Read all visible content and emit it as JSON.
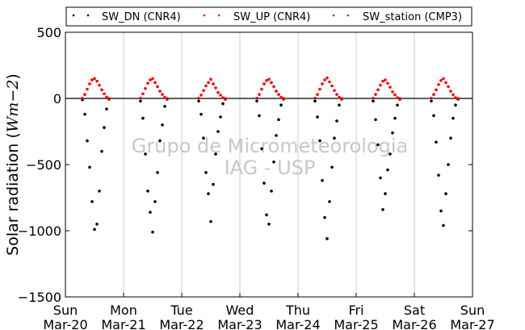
{
  "chart_data": {
    "type": "scatter",
    "title": "",
    "xlabel": "",
    "ylabel": "Solar radiation ($Wm{-2}$)",
    "ylabel_parts": {
      "main": "Solar radiation (",
      "unit": "Wm",
      "exp": "−2",
      "close": ")"
    },
    "ylim": [
      -1500,
      500
    ],
    "yticks": [
      500,
      0,
      -500,
      -1000,
      -1500
    ],
    "ytick_labels": [
      "500",
      "0",
      "−500",
      "−1000",
      "−1500"
    ],
    "xlim": [
      "2014-03-20",
      "2014-03-27"
    ],
    "xtick_labels": [
      {
        "day": "Sun",
        "date": "Mar-20"
      },
      {
        "day": "Mon",
        "date": "Mar-21"
      },
      {
        "day": "Tue",
        "date": "Mar-22"
      },
      {
        "day": "Wed",
        "date": "Mar-23"
      },
      {
        "day": "Thu",
        "date": "Mar-24"
      },
      {
        "day": "Fri",
        "date": "Mar-25"
      },
      {
        "day": "Sat",
        "date": "Mar-26"
      },
      {
        "day": "Sun",
        "date": "Mar-27"
      }
    ],
    "grid": "vertical",
    "zero_line": true,
    "legend_position": "top",
    "watermark": [
      "Grupo de Micrometeorologia",
      "IAG - USP"
    ],
    "series": [
      {
        "name": "SW_DN (CNR4)",
        "color": "#000000",
        "points": [
          [
            "2014-03-20 07:00",
            -10
          ],
          [
            "2014-03-20 08:00",
            -120
          ],
          [
            "2014-03-20 09:00",
            -320
          ],
          [
            "2014-03-20 10:00",
            -520
          ],
          [
            "2014-03-20 11:00",
            -780
          ],
          [
            "2014-03-20 12:00",
            -990
          ],
          [
            "2014-03-20 13:00",
            -950
          ],
          [
            "2014-03-20 14:00",
            -700
          ],
          [
            "2014-03-20 15:00",
            -400
          ],
          [
            "2014-03-20 16:00",
            -220
          ],
          [
            "2014-03-20 17:00",
            -80
          ],
          [
            "2014-03-20 18:00",
            -5
          ],
          [
            "2014-03-21 07:00",
            -20
          ],
          [
            "2014-03-21 08:00",
            -150
          ],
          [
            "2014-03-21 09:00",
            -420
          ],
          [
            "2014-03-21 10:00",
            -700
          ],
          [
            "2014-03-21 11:00",
            -860
          ],
          [
            "2014-03-21 12:00",
            -1010
          ],
          [
            "2014-03-21 13:00",
            -780
          ],
          [
            "2014-03-21 14:00",
            -560
          ],
          [
            "2014-03-21 15:00",
            -320
          ],
          [
            "2014-03-21 16:00",
            -200
          ],
          [
            "2014-03-21 17:00",
            -60
          ],
          [
            "2014-03-21 18:00",
            -5
          ],
          [
            "2014-03-22 07:00",
            -20
          ],
          [
            "2014-03-22 08:00",
            -120
          ],
          [
            "2014-03-22 09:00",
            -300
          ],
          [
            "2014-03-22 10:00",
            -560
          ],
          [
            "2014-03-22 11:00",
            -720
          ],
          [
            "2014-03-22 12:00",
            -930
          ],
          [
            "2014-03-22 13:00",
            -650
          ],
          [
            "2014-03-22 14:00",
            -420
          ],
          [
            "2014-03-22 15:00",
            -250
          ],
          [
            "2014-03-22 16:00",
            -140
          ],
          [
            "2014-03-22 17:00",
            -40
          ],
          [
            "2014-03-22 18:00",
            -5
          ],
          [
            "2014-03-23 07:00",
            -20
          ],
          [
            "2014-03-23 08:00",
            -130
          ],
          [
            "2014-03-23 09:00",
            -380
          ],
          [
            "2014-03-23 10:00",
            -640
          ],
          [
            "2014-03-23 11:00",
            -880
          ],
          [
            "2014-03-23 12:00",
            -950
          ],
          [
            "2014-03-23 13:00",
            -700
          ],
          [
            "2014-03-23 14:00",
            -480
          ],
          [
            "2014-03-23 15:00",
            -280
          ],
          [
            "2014-03-23 16:00",
            -160
          ],
          [
            "2014-03-23 17:00",
            -50
          ],
          [
            "2014-03-23 18:00",
            -5
          ],
          [
            "2014-03-24 07:00",
            -20
          ],
          [
            "2014-03-24 08:00",
            -140
          ],
          [
            "2014-03-24 09:00",
            -320
          ],
          [
            "2014-03-24 10:00",
            -620
          ],
          [
            "2014-03-24 11:00",
            -900
          ],
          [
            "2014-03-24 12:00",
            -1060
          ],
          [
            "2014-03-24 13:00",
            -780
          ],
          [
            "2014-03-24 14:00",
            -520
          ],
          [
            "2014-03-24 15:00",
            -300
          ],
          [
            "2014-03-24 16:00",
            -170
          ],
          [
            "2014-03-24 17:00",
            -50
          ],
          [
            "2014-03-24 18:00",
            -5
          ],
          [
            "2014-03-25 07:00",
            -20
          ],
          [
            "2014-03-25 08:00",
            -160
          ],
          [
            "2014-03-25 09:00",
            -350
          ],
          [
            "2014-03-25 10:00",
            -600
          ],
          [
            "2014-03-25 11:00",
            -840
          ],
          [
            "2014-03-25 12:00",
            -720
          ],
          [
            "2014-03-25 13:00",
            -540
          ],
          [
            "2014-03-25 14:00",
            -420
          ],
          [
            "2014-03-25 15:00",
            -260
          ],
          [
            "2014-03-25 16:00",
            -150
          ],
          [
            "2014-03-25 17:00",
            -50
          ],
          [
            "2014-03-25 18:00",
            -5
          ],
          [
            "2014-03-26 07:00",
            -20
          ],
          [
            "2014-03-26 08:00",
            -130
          ],
          [
            "2014-03-26 09:00",
            -330
          ],
          [
            "2014-03-26 10:00",
            -580
          ],
          [
            "2014-03-26 11:00",
            -850
          ],
          [
            "2014-03-26 12:00",
            -960
          ],
          [
            "2014-03-26 13:00",
            -720
          ],
          [
            "2014-03-26 14:00",
            -500
          ],
          [
            "2014-03-26 15:00",
            -300
          ],
          [
            "2014-03-26 16:00",
            -150
          ],
          [
            "2014-03-26 17:00",
            -50
          ],
          [
            "2014-03-26 18:00",
            -5
          ]
        ]
      },
      {
        "name": "SW_UP (CNR4)",
        "color": "#ff0000",
        "points": [
          [
            "2014-03-20 07:00",
            2
          ],
          [
            "2014-03-20 08:00",
            30
          ],
          [
            "2014-03-20 09:00",
            70
          ],
          [
            "2014-03-20 10:00",
            110
          ],
          [
            "2014-03-20 11:00",
            140
          ],
          [
            "2014-03-20 12:00",
            150
          ],
          [
            "2014-03-20 13:00",
            130
          ],
          [
            "2014-03-20 14:00",
            100
          ],
          [
            "2014-03-20 15:00",
            65
          ],
          [
            "2014-03-20 16:00",
            35
          ],
          [
            "2014-03-20 17:00",
            10
          ],
          [
            "2014-03-20 18:00",
            0
          ],
          [
            "2014-03-21 07:00",
            2
          ],
          [
            "2014-03-21 08:00",
            35
          ],
          [
            "2014-03-21 09:00",
            75
          ],
          [
            "2014-03-21 10:00",
            115
          ],
          [
            "2014-03-21 11:00",
            140
          ],
          [
            "2014-03-21 12:00",
            150
          ],
          [
            "2014-03-21 13:00",
            120
          ],
          [
            "2014-03-21 14:00",
            90
          ],
          [
            "2014-03-21 15:00",
            55
          ],
          [
            "2014-03-21 16:00",
            30
          ],
          [
            "2014-03-21 17:00",
            8
          ],
          [
            "2014-03-21 18:00",
            0
          ],
          [
            "2014-03-22 07:00",
            2
          ],
          [
            "2014-03-22 08:00",
            25
          ],
          [
            "2014-03-22 09:00",
            60
          ],
          [
            "2014-03-22 10:00",
            95
          ],
          [
            "2014-03-22 11:00",
            120
          ],
          [
            "2014-03-22 12:00",
            145
          ],
          [
            "2014-03-22 13:00",
            110
          ],
          [
            "2014-03-22 14:00",
            80
          ],
          [
            "2014-03-22 15:00",
            45
          ],
          [
            "2014-03-22 16:00",
            25
          ],
          [
            "2014-03-22 17:00",
            6
          ],
          [
            "2014-03-22 18:00",
            0
          ],
          [
            "2014-03-23 07:00",
            2
          ],
          [
            "2014-03-23 08:00",
            30
          ],
          [
            "2014-03-23 09:00",
            70
          ],
          [
            "2014-03-23 10:00",
            110
          ],
          [
            "2014-03-23 11:00",
            135
          ],
          [
            "2014-03-23 12:00",
            145
          ],
          [
            "2014-03-23 13:00",
            120
          ],
          [
            "2014-03-23 14:00",
            90
          ],
          [
            "2014-03-23 15:00",
            55
          ],
          [
            "2014-03-23 16:00",
            30
          ],
          [
            "2014-03-23 17:00",
            8
          ],
          [
            "2014-03-23 18:00",
            0
          ],
          [
            "2014-03-24 07:00",
            2
          ],
          [
            "2014-03-24 08:00",
            30
          ],
          [
            "2014-03-24 09:00",
            70
          ],
          [
            "2014-03-24 10:00",
            110
          ],
          [
            "2014-03-24 11:00",
            140
          ],
          [
            "2014-03-24 12:00",
            155
          ],
          [
            "2014-03-24 13:00",
            125
          ],
          [
            "2014-03-24 14:00",
            95
          ],
          [
            "2014-03-24 15:00",
            60
          ],
          [
            "2014-03-24 16:00",
            30
          ],
          [
            "2014-03-24 17:00",
            8
          ],
          [
            "2014-03-24 18:00",
            0
          ],
          [
            "2014-03-25 07:00",
            2
          ],
          [
            "2014-03-25 08:00",
            30
          ],
          [
            "2014-03-25 09:00",
            65
          ],
          [
            "2014-03-25 10:00",
            100
          ],
          [
            "2014-03-25 11:00",
            130
          ],
          [
            "2014-03-25 12:00",
            140
          ],
          [
            "2014-03-25 13:00",
            115
          ],
          [
            "2014-03-25 14:00",
            85
          ],
          [
            "2014-03-25 15:00",
            50
          ],
          [
            "2014-03-25 16:00",
            28
          ],
          [
            "2014-03-25 17:00",
            6
          ],
          [
            "2014-03-25 18:00",
            0
          ],
          [
            "2014-03-26 07:00",
            2
          ],
          [
            "2014-03-26 08:00",
            30
          ],
          [
            "2014-03-26 09:00",
            65
          ],
          [
            "2014-03-26 10:00",
            105
          ],
          [
            "2014-03-26 11:00",
            135
          ],
          [
            "2014-03-26 12:00",
            150
          ],
          [
            "2014-03-26 13:00",
            120
          ],
          [
            "2014-03-26 14:00",
            90
          ],
          [
            "2014-03-26 15:00",
            55
          ],
          [
            "2014-03-26 16:00",
            28
          ],
          [
            "2014-03-26 17:00",
            6
          ],
          [
            "2014-03-26 18:00",
            0
          ]
        ]
      },
      {
        "name": "SW_station (CMP3)",
        "color": "#008000",
        "points": []
      }
    ]
  }
}
